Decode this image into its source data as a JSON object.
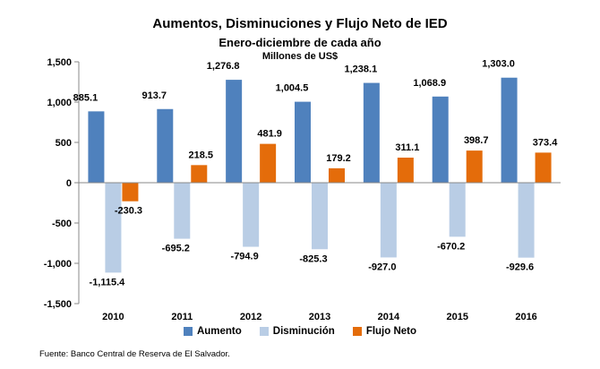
{
  "chart_data": {
    "type": "bar",
    "title": "Aumentos, Disminuciones y Flujo Neto de IED",
    "subtitle": "Enero-diciembre de cada año",
    "ylabel": "Millones de US$",
    "categories": [
      "2010",
      "2011",
      "2012",
      "2013",
      "2014",
      "2015",
      "2016"
    ],
    "series": [
      {
        "name": "Aumento",
        "color": "#4F81BD",
        "values": [
          885.1,
          913.7,
          1276.8,
          1004.5,
          1238.1,
          1068.9,
          1303.0
        ],
        "labels": [
          "885.1",
          "913.7",
          "1,276.8",
          "1,004.5",
          "1,238.1",
          "1,068.9",
          "1,303.0"
        ]
      },
      {
        "name": "Disminución",
        "color": "#B9CDE5",
        "values": [
          -1115.4,
          -695.2,
          -794.9,
          -825.3,
          -927.0,
          -670.2,
          -929.6
        ],
        "labels": [
          "-1,115.4",
          "-695.2",
          "-794.9",
          "-825.3",
          "-927.0",
          "-670.2",
          "-929.6"
        ]
      },
      {
        "name": "Flujo Neto",
        "color": "#E46C0A",
        "values": [
          -230.3,
          218.5,
          481.9,
          179.2,
          311.1,
          398.7,
          373.4
        ],
        "labels": [
          "-230.3",
          "218.5",
          "481.9",
          "179.2",
          "311.1",
          "398.7",
          "373.4"
        ]
      }
    ],
    "ylim": [
      -1500,
      1500
    ],
    "yticks": [
      1500,
      1000,
      500,
      0,
      -500,
      -1000,
      -1500
    ],
    "ytick_labels": [
      "1,500",
      "1,000",
      "500",
      "0",
      "-500",
      "-1,000",
      "-1,500"
    ],
    "grid": false,
    "legend_position": "bottom"
  },
  "source": "Fuente: Banco Central de Reserva de El Salvador."
}
